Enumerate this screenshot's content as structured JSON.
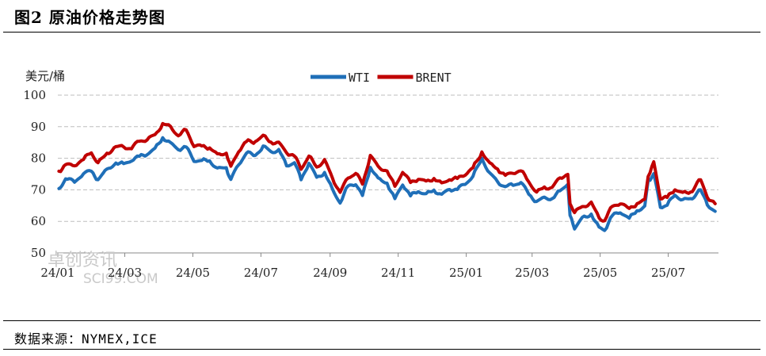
{
  "title": "图2 原油价格走势图",
  "source": "数据来源：NYMEX,ICE",
  "watermark": {
    "line1": "卓创资讯",
    "line2": "SCI99.COM"
  },
  "chart_data": {
    "type": "line",
    "ylabel": "美元/桶",
    "ylim": [
      50,
      100
    ],
    "yticks": [
      50,
      60,
      70,
      80,
      90,
      100
    ],
    "grid": true,
    "legend_position": "top-center",
    "x_tick_labels": [
      "24/01",
      "24/03",
      "24/05",
      "24/07",
      "24/09",
      "24/11",
      "25/01",
      "25/03",
      "25/05",
      "25/07"
    ],
    "series": [
      {
        "name": "WTI",
        "color": "#1F6FB8",
        "points": [
          [
            "24/01/02",
            70.4
          ],
          [
            "24/01/08",
            73.5
          ],
          [
            "24/01/16",
            72.4
          ],
          [
            "24/01/24",
            75.1
          ],
          [
            "24/01/31",
            75.9
          ],
          [
            "24/02/06",
            73.2
          ],
          [
            "24/02/14",
            76.6
          ],
          [
            "24/02/22",
            78.5
          ],
          [
            "24/02/29",
            78.3
          ],
          [
            "24/03/07",
            79.1
          ],
          [
            "24/03/14",
            80.6
          ],
          [
            "24/03/21",
            81.1
          ],
          [
            "24/03/28",
            83.2
          ],
          [
            "24/04/04",
            86.5
          ],
          [
            "24/04/11",
            85.0
          ],
          [
            "24/04/18",
            82.7
          ],
          [
            "24/04/25",
            83.6
          ],
          [
            "24/05/02",
            79.0
          ],
          [
            "24/05/09",
            79.3
          ],
          [
            "24/05/16",
            79.2
          ],
          [
            "24/05/23",
            76.9
          ],
          [
            "24/05/31",
            77.0
          ],
          [
            "24/06/04",
            73.3
          ],
          [
            "24/06/11",
            77.9
          ],
          [
            "24/06/18",
            81.6
          ],
          [
            "24/06/26",
            80.9
          ],
          [
            "24/07/03",
            83.9
          ],
          [
            "24/07/10",
            82.1
          ],
          [
            "24/07/17",
            82.8
          ],
          [
            "24/07/24",
            77.6
          ],
          [
            "24/07/31",
            78.6
          ],
          [
            "24/08/06",
            73.2
          ],
          [
            "24/08/13",
            78.4
          ],
          [
            "24/08/20",
            74.0
          ],
          [
            "24/08/27",
            75.5
          ],
          [
            "24/09/03",
            70.3
          ],
          [
            "24/09/10",
            65.8
          ],
          [
            "24/09/17",
            71.2
          ],
          [
            "24/09/24",
            71.6
          ],
          [
            "24/09/30",
            68.2
          ],
          [
            "24/10/07",
            77.1
          ],
          [
            "24/10/14",
            73.8
          ],
          [
            "24/10/22",
            72.1
          ],
          [
            "24/10/29",
            67.2
          ],
          [
            "24/11/05",
            71.5
          ],
          [
            "24/11/12",
            68.1
          ],
          [
            "24/11/19",
            69.4
          ],
          [
            "24/11/26",
            68.8
          ],
          [
            "24/12/03",
            69.9
          ],
          [
            "24/12/10",
            68.6
          ],
          [
            "24/12/17",
            70.1
          ],
          [
            "24/12/24",
            70.1
          ],
          [
            "24/12/31",
            71.7
          ],
          [
            "25/01/07",
            74.3
          ],
          [
            "25/01/15",
            80.0
          ],
          [
            "25/01/22",
            75.4
          ],
          [
            "25/01/29",
            72.6
          ],
          [
            "25/02/05",
            71.0
          ],
          [
            "25/02/12",
            71.4
          ],
          [
            "25/02/19",
            72.3
          ],
          [
            "25/02/26",
            68.6
          ],
          [
            "25/03/05",
            66.3
          ],
          [
            "25/03/12",
            67.7
          ],
          [
            "25/03/19",
            67.2
          ],
          [
            "25/03/26",
            69.7
          ],
          [
            "25/04/02",
            71.7
          ],
          [
            "25/04/04",
            61.9
          ],
          [
            "25/04/08",
            57.6
          ],
          [
            "25/04/15",
            61.3
          ],
          [
            "25/04/23",
            62.3
          ],
          [
            "25/04/30",
            58.2
          ],
          [
            "25/05/05",
            57.1
          ],
          [
            "25/05/12",
            61.9
          ],
          [
            "25/05/19",
            62.7
          ],
          [
            "25/05/27",
            61.0
          ],
          [
            "25/06/03",
            63.4
          ],
          [
            "25/06/10",
            64.9
          ],
          [
            "25/06/13",
            72.9
          ],
          [
            "25/06/18",
            75.1
          ],
          [
            "25/06/24",
            64.4
          ],
          [
            "25/06/30",
            65.1
          ],
          [
            "25/07/07",
            68.3
          ],
          [
            "25/07/14",
            66.9
          ],
          [
            "25/07/21",
            67.2
          ],
          [
            "25/07/30",
            70.0
          ],
          [
            "25/08/05",
            65.2
          ],
          [
            "25/08/12",
            63.2
          ]
        ]
      },
      {
        "name": "BRENT",
        "color": "#C00000",
        "points": [
          [
            "24/01/02",
            75.9
          ],
          [
            "24/01/08",
            78.0
          ],
          [
            "24/01/16",
            77.6
          ],
          [
            "24/01/24",
            79.6
          ],
          [
            "24/01/31",
            81.7
          ],
          [
            "24/02/06",
            78.6
          ],
          [
            "24/02/14",
            81.6
          ],
          [
            "24/02/22",
            83.7
          ],
          [
            "24/02/29",
            83.6
          ],
          [
            "24/03/07",
            83.0
          ],
          [
            "24/03/14",
            85.4
          ],
          [
            "24/03/21",
            85.8
          ],
          [
            "24/03/28",
            87.5
          ],
          [
            "24/04/04",
            91.0
          ],
          [
            "24/04/11",
            90.1
          ],
          [
            "24/04/18",
            87.1
          ],
          [
            "24/04/25",
            89.0
          ],
          [
            "24/05/02",
            83.7
          ],
          [
            "24/05/09",
            83.9
          ],
          [
            "24/05/16",
            83.3
          ],
          [
            "24/05/23",
            81.4
          ],
          [
            "24/05/31",
            81.6
          ],
          [
            "24/06/04",
            77.5
          ],
          [
            "24/06/11",
            82.0
          ],
          [
            "24/06/18",
            85.3
          ],
          [
            "24/06/26",
            85.3
          ],
          [
            "24/07/03",
            87.3
          ],
          [
            "24/07/10",
            85.1
          ],
          [
            "24/07/17",
            85.1
          ],
          [
            "24/07/24",
            81.7
          ],
          [
            "24/07/31",
            80.7
          ],
          [
            "24/08/06",
            76.5
          ],
          [
            "24/08/13",
            80.7
          ],
          [
            "24/08/20",
            77.2
          ],
          [
            "24/08/27",
            79.6
          ],
          [
            "24/09/03",
            73.8
          ],
          [
            "24/09/10",
            69.2
          ],
          [
            "24/09/17",
            73.7
          ],
          [
            "24/09/24",
            75.2
          ],
          [
            "24/09/30",
            71.8
          ],
          [
            "24/10/07",
            80.9
          ],
          [
            "24/10/14",
            77.5
          ],
          [
            "24/10/22",
            76.0
          ],
          [
            "24/10/29",
            71.1
          ],
          [
            "24/11/05",
            75.5
          ],
          [
            "24/11/12",
            72.3
          ],
          [
            "24/11/19",
            73.3
          ],
          [
            "24/11/26",
            72.8
          ],
          [
            "24/12/03",
            73.6
          ],
          [
            "24/12/10",
            72.2
          ],
          [
            "24/12/17",
            73.2
          ],
          [
            "24/12/24",
            73.6
          ],
          [
            "24/12/31",
            74.6
          ],
          [
            "25/01/07",
            77.0
          ],
          [
            "25/01/15",
            82.0
          ],
          [
            "25/01/22",
            78.6
          ],
          [
            "25/01/29",
            76.6
          ],
          [
            "25/02/05",
            74.6
          ],
          [
            "25/02/12",
            75.2
          ],
          [
            "25/02/19",
            76.0
          ],
          [
            "25/02/26",
            72.5
          ],
          [
            "25/03/05",
            69.3
          ],
          [
            "25/03/12",
            70.9
          ],
          [
            "25/03/19",
            70.8
          ],
          [
            "25/03/26",
            73.8
          ],
          [
            "25/04/02",
            74.9
          ],
          [
            "25/04/04",
            65.6
          ],
          [
            "25/04/08",
            62.8
          ],
          [
            "25/04/15",
            64.7
          ],
          [
            "25/04/23",
            66.1
          ],
          [
            "25/04/30",
            61.1
          ],
          [
            "25/05/05",
            60.2
          ],
          [
            "25/05/12",
            64.8
          ],
          [
            "25/05/19",
            65.5
          ],
          [
            "25/05/27",
            64.1
          ],
          [
            "25/06/03",
            65.6
          ],
          [
            "25/06/10",
            67.0
          ],
          [
            "25/06/13",
            74.2
          ],
          [
            "25/06/18",
            78.9
          ],
          [
            "25/06/24",
            67.1
          ],
          [
            "25/06/30",
            67.6
          ],
          [
            "25/07/07",
            70.0
          ],
          [
            "25/07/14",
            69.2
          ],
          [
            "25/07/21",
            69.3
          ],
          [
            "25/07/30",
            73.2
          ],
          [
            "25/08/05",
            67.6
          ],
          [
            "25/08/12",
            65.6
          ]
        ]
      }
    ]
  }
}
